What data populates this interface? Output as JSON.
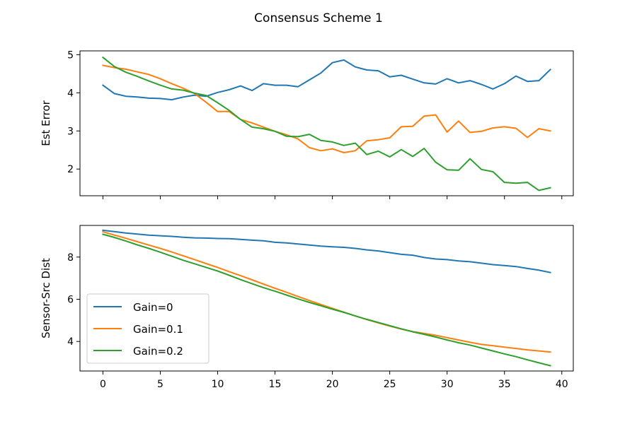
{
  "figure": {
    "title": "Consensus Scheme 1"
  },
  "colors": {
    "gain0": "#1f77b4",
    "gain01": "#ff7f0e",
    "gain02": "#2ca02c"
  },
  "chart_data": [
    {
      "type": "line",
      "title": "",
      "xlabel": "",
      "ylabel": "Est Error",
      "xlim": [
        -2,
        41
      ],
      "ylim": [
        1.3,
        5.1
      ],
      "xticks": [
        0,
        5,
        10,
        15,
        20,
        25,
        30,
        35,
        40
      ],
      "xtick_labels_shown": false,
      "yticks": [
        2,
        3,
        4,
        5
      ],
      "grid": false,
      "x": [
        0,
        1,
        2,
        3,
        4,
        5,
        6,
        7,
        8,
        9,
        10,
        11,
        12,
        13,
        14,
        15,
        16,
        17,
        18,
        19,
        20,
        21,
        22,
        23,
        24,
        25,
        26,
        27,
        28,
        29,
        30,
        31,
        32,
        33,
        34,
        35,
        36,
        37,
        38,
        39
      ],
      "series": [
        {
          "name": "Gain=0",
          "color_key": "gain0",
          "values": [
            4.2,
            3.98,
            3.91,
            3.89,
            3.86,
            3.85,
            3.82,
            3.89,
            3.94,
            3.91,
            4.01,
            4.08,
            4.18,
            4.06,
            4.24,
            4.2,
            4.2,
            4.16,
            4.34,
            4.52,
            4.79,
            4.86,
            4.68,
            4.6,
            4.58,
            4.42,
            4.46,
            4.36,
            4.26,
            4.23,
            4.37,
            4.26,
            4.32,
            4.22,
            4.1,
            4.24,
            4.44,
            4.3,
            4.32,
            4.61
          ]
        },
        {
          "name": "Gain=0.1",
          "color_key": "gain01",
          "values": [
            4.72,
            4.66,
            4.62,
            4.55,
            4.48,
            4.37,
            4.24,
            4.12,
            3.98,
            3.75,
            3.51,
            3.51,
            3.3,
            3.21,
            3.1,
            2.99,
            2.9,
            2.79,
            2.56,
            2.48,
            2.53,
            2.43,
            2.48,
            2.74,
            2.77,
            2.82,
            3.11,
            3.12,
            3.39,
            3.42,
            2.97,
            3.26,
            2.96,
            2.99,
            3.08,
            3.11,
            3.07,
            2.83,
            3.06,
            3.0
          ]
        },
        {
          "name": "Gain=0.2",
          "color_key": "gain02",
          "values": [
            4.93,
            4.69,
            4.54,
            4.43,
            4.31,
            4.2,
            4.1,
            4.07,
            3.99,
            3.93,
            3.74,
            3.54,
            3.3,
            3.1,
            3.06,
            2.99,
            2.86,
            2.85,
            2.91,
            2.75,
            2.71,
            2.62,
            2.68,
            2.38,
            2.47,
            2.32,
            2.51,
            2.33,
            2.54,
            2.18,
            1.98,
            1.97,
            2.27,
            1.99,
            1.93,
            1.65,
            1.63,
            1.65,
            1.44,
            1.51
          ]
        }
      ]
    },
    {
      "type": "line",
      "title": "",
      "xlabel": "",
      "ylabel": "Sensor-Src Dist",
      "xlim": [
        -2,
        41
      ],
      "ylim": [
        2.6,
        9.5
      ],
      "xticks": [
        0,
        5,
        10,
        15,
        20,
        25,
        30,
        35,
        40
      ],
      "xtick_labels_shown": true,
      "yticks": [
        4,
        6,
        8
      ],
      "grid": false,
      "legend_position": "lower-left",
      "x": [
        0,
        1,
        2,
        3,
        4,
        5,
        6,
        7,
        8,
        9,
        10,
        11,
        12,
        13,
        14,
        15,
        16,
        17,
        18,
        19,
        20,
        21,
        22,
        23,
        24,
        25,
        26,
        27,
        28,
        29,
        30,
        31,
        32,
        33,
        34,
        35,
        36,
        37,
        38,
        39
      ],
      "series": [
        {
          "name": "Gain=0",
          "color_key": "gain0",
          "values": [
            9.27,
            9.21,
            9.14,
            9.09,
            9.04,
            9.01,
            8.98,
            8.94,
            8.91,
            8.9,
            8.88,
            8.87,
            8.84,
            8.8,
            8.77,
            8.7,
            8.67,
            8.62,
            8.57,
            8.52,
            8.49,
            8.46,
            8.41,
            8.34,
            8.29,
            8.21,
            8.13,
            8.09,
            7.98,
            7.91,
            7.88,
            7.82,
            7.78,
            7.71,
            7.64,
            7.6,
            7.55,
            7.46,
            7.38,
            7.27
          ]
        },
        {
          "name": "Gain=0.1",
          "color_key": "gain01",
          "values": [
            9.2,
            9.04,
            8.89,
            8.73,
            8.57,
            8.41,
            8.24,
            8.06,
            7.88,
            7.69,
            7.51,
            7.31,
            7.12,
            6.92,
            6.72,
            6.52,
            6.33,
            6.13,
            5.94,
            5.75,
            5.57,
            5.39,
            5.21,
            5.04,
            4.88,
            4.73,
            4.59,
            4.47,
            4.38,
            4.29,
            4.18,
            4.07,
            3.96,
            3.86,
            3.8,
            3.73,
            3.67,
            3.6,
            3.55,
            3.5
          ]
        },
        {
          "name": "Gain=0.2",
          "color_key": "gain02",
          "values": [
            9.08,
            8.93,
            8.76,
            8.58,
            8.41,
            8.23,
            8.04,
            7.85,
            7.68,
            7.51,
            7.34,
            7.14,
            6.93,
            6.74,
            6.55,
            6.38,
            6.2,
            6.02,
            5.85,
            5.69,
            5.53,
            5.38,
            5.21,
            5.05,
            4.9,
            4.75,
            4.6,
            4.46,
            4.34,
            4.21,
            4.07,
            3.94,
            3.83,
            3.69,
            3.55,
            3.41,
            3.28,
            3.13,
            2.99,
            2.85
          ]
        }
      ]
    }
  ]
}
